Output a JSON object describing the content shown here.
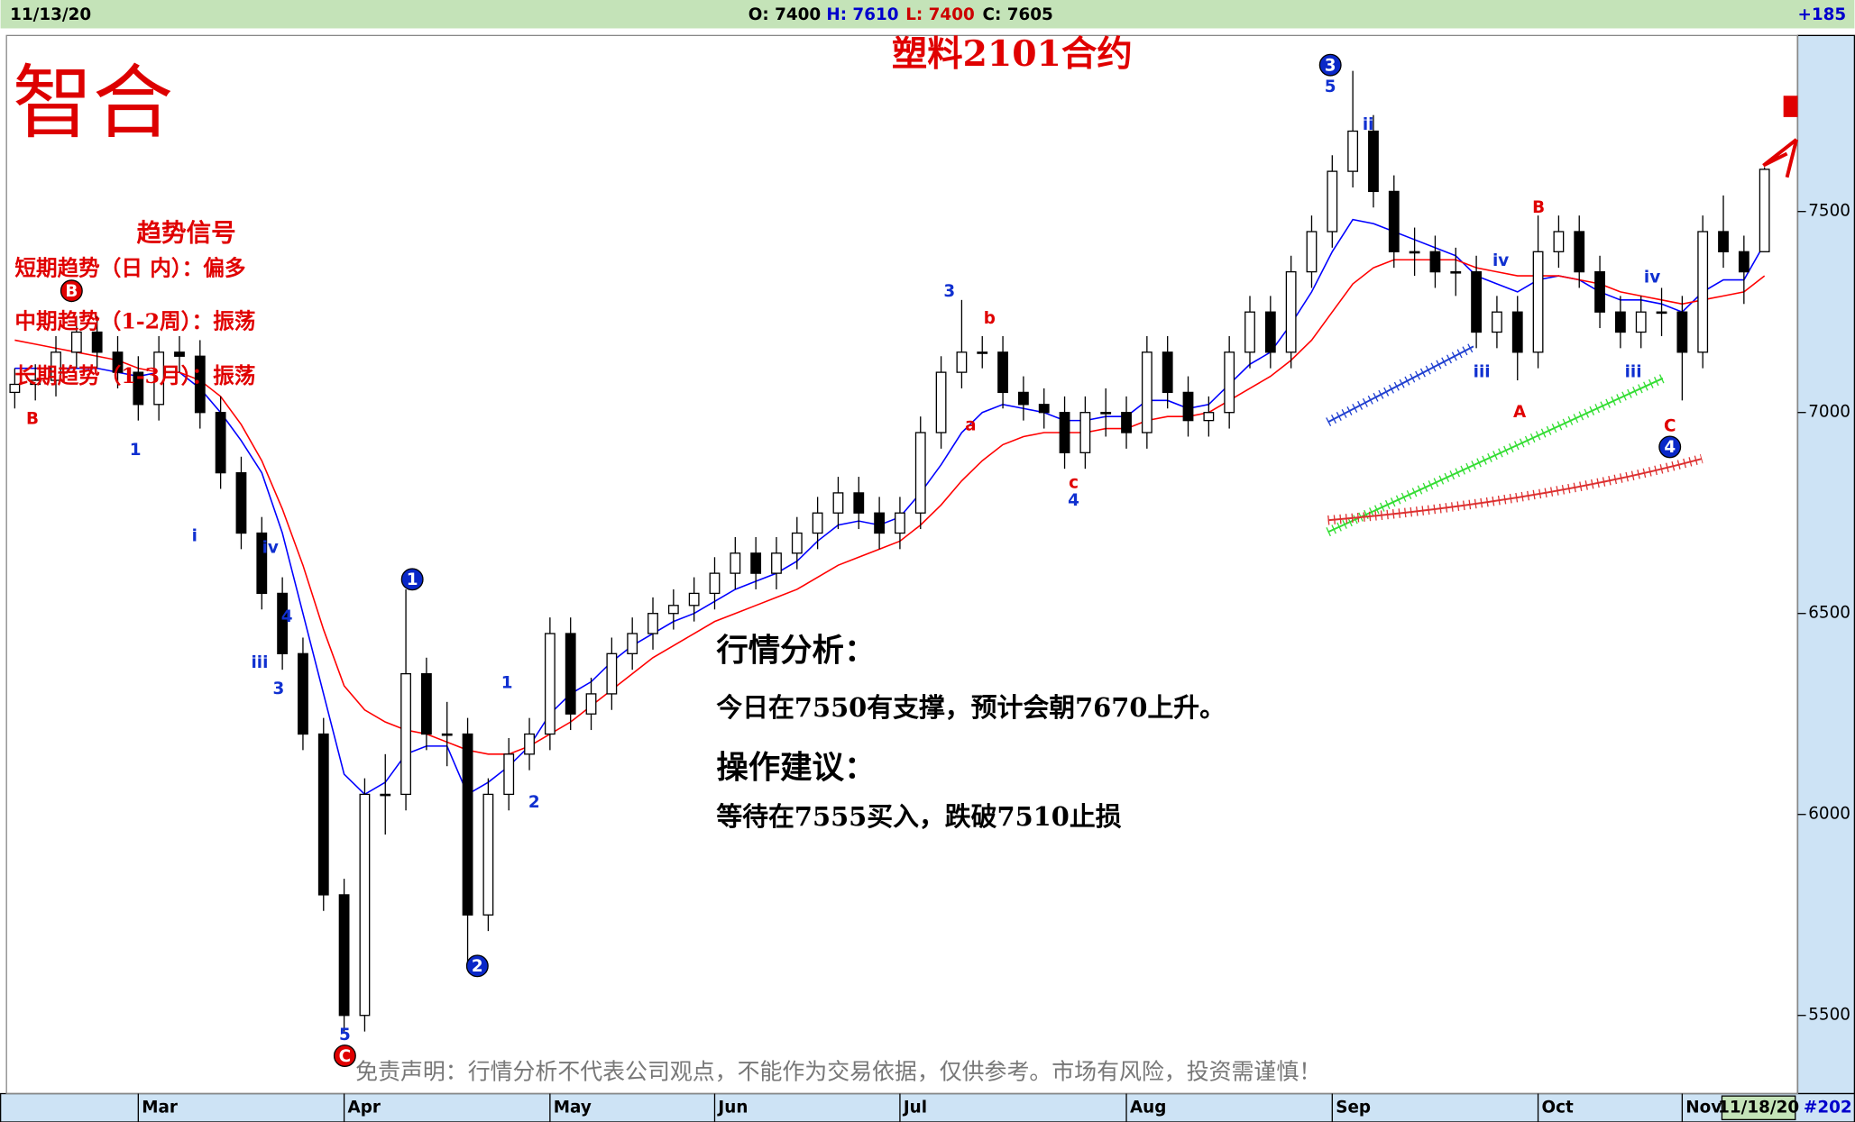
{
  "header": {
    "date": "11/13/20",
    "open": "O: 7400",
    "high": "H: 7610",
    "low": "L: 7400",
    "close": "C: 7605",
    "change": "+185"
  },
  "logo": "智合",
  "signal": {
    "title": "趋势信号",
    "lines": [
      "短期趋势（日 内）：偏多",
      "中期趋势（1-2周）：振荡",
      "长期趋势（1-3月）：振荡"
    ]
  },
  "analysis": {
    "title": "行情分析：",
    "text": "今日在7550有支撑，预计会朝7670上升。",
    "advice_title": "操作建议：",
    "advice": "等待在7555买入，跌破7510止损"
  },
  "disclaimer": "免责声明：行情分析不代表公司观点，不能作为交易依据，仅供参考。市场有风险，投资需谨慎！",
  "footer": {
    "date": "11/18/20",
    "count": "#202"
  },
  "chart_data": {
    "type": "candlestick",
    "title": "塑料2101合约",
    "categories": [
      null,
      null,
      null,
      null,
      null,
      null,
      "Mar",
      null,
      null,
      null,
      null,
      null,
      null,
      null,
      null,
      null,
      "Apr",
      null,
      null,
      null,
      null,
      null,
      null,
      null,
      null,
      null,
      "May",
      null,
      null,
      null,
      null,
      null,
      null,
      null,
      "Jun",
      null,
      null,
      null,
      null,
      null,
      null,
      null,
      null,
      "Jul",
      null,
      null,
      null,
      null,
      null,
      null,
      null,
      null,
      null,
      null,
      "Aug",
      null,
      null,
      null,
      null,
      null,
      null,
      null,
      null,
      null,
      "Sep",
      null,
      null,
      null,
      null,
      null,
      null,
      null,
      null,
      null,
      "Oct",
      null,
      null,
      null,
      null,
      null,
      null,
      "Nov",
      null,
      null,
      null,
      null
    ],
    "open": [
      7050,
      7070,
      7080,
      7150,
      7200,
      7150,
      7100,
      7020,
      7150,
      7140,
      7000,
      6850,
      6700,
      6550,
      6400,
      6200,
      5800,
      5500,
      6050,
      6050,
      6350,
      6200,
      6200,
      5750,
      6050,
      6150,
      6200,
      6450,
      6250,
      6300,
      6400,
      6450,
      6500,
      6520,
      6550,
      6600,
      6650,
      6600,
      6650,
      6700,
      6750,
      6800,
      6750,
      6700,
      6750,
      6950,
      7100,
      7150,
      7150,
      7050,
      7020,
      7000,
      6900,
      7000,
      7000,
      6950,
      7150,
      7050,
      6980,
      7000,
      7150,
      7250,
      7150,
      7350,
      7450,
      7600,
      7700,
      7550,
      7400,
      7400,
      7350,
      7350,
      7200,
      7250,
      7150,
      7400,
      7450,
      7350,
      7250,
      7200,
      7250,
      7250,
      7150,
      7450,
      7400,
      7400
    ],
    "high": [
      7110,
      7120,
      7190,
      7240,
      7240,
      7190,
      7140,
      7190,
      7190,
      7180,
      7040,
      6890,
      6740,
      6590,
      6440,
      6240,
      5840,
      6090,
      6150,
      6560,
      6390,
      6280,
      6240,
      6090,
      6190,
      6240,
      6490,
      6490,
      6340,
      6440,
      6490,
      6540,
      6560,
      6590,
      6640,
      6690,
      6690,
      6690,
      6740,
      6790,
      6840,
      6840,
      6790,
      6790,
      6990,
      7140,
      7280,
      7190,
      7190,
      7090,
      7060,
      7040,
      7040,
      7060,
      7040,
      7190,
      7190,
      7090,
      7040,
      7190,
      7290,
      7290,
      7390,
      7490,
      7640,
      7850,
      7740,
      7590,
      7460,
      7440,
      7410,
      7390,
      7290,
      7290,
      7490,
      7490,
      7490,
      7390,
      7290,
      7290,
      7310,
      7290,
      7490,
      7540,
      7440,
      7610
    ],
    "low": [
      7010,
      7030,
      7040,
      7110,
      7110,
      7060,
      6980,
      6980,
      7100,
      6960,
      6810,
      6660,
      6510,
      6360,
      6160,
      5760,
      5460,
      5460,
      5950,
      6010,
      6160,
      6120,
      5620,
      5710,
      6010,
      6110,
      6160,
      6210,
      6210,
      6260,
      6360,
      6410,
      6460,
      6480,
      6510,
      6560,
      6560,
      6560,
      6610,
      6660,
      6710,
      6710,
      6660,
      6660,
      6710,
      6910,
      7060,
      7110,
      7010,
      6980,
      6960,
      6860,
      6860,
      6940,
      6910,
      6910,
      7010,
      6940,
      6940,
      6960,
      7110,
      7110,
      7110,
      7310,
      7410,
      7560,
      7510,
      7360,
      7340,
      7310,
      7290,
      7160,
      7160,
      7080,
      7110,
      7360,
      7310,
      7210,
      7160,
      7160,
      7190,
      7030,
      7110,
      7360,
      7270,
      7400
    ],
    "close": [
      7070,
      7080,
      7150,
      7200,
      7150,
      7100,
      7020,
      7150,
      7140,
      7000,
      6850,
      6700,
      6550,
      6400,
      6200,
      5800,
      5500,
      6050,
      6050,
      6350,
      6200,
      6200,
      5750,
      6050,
      6150,
      6200,
      6450,
      6250,
      6300,
      6400,
      6450,
      6500,
      6520,
      6550,
      6600,
      6650,
      6600,
      6650,
      6700,
      6750,
      6800,
      6750,
      6700,
      6750,
      6950,
      7100,
      7150,
      7150,
      7050,
      7020,
      7000,
      6900,
      7000,
      7000,
      6950,
      7150,
      7050,
      6980,
      7000,
      7150,
      7250,
      7150,
      7350,
      7450,
      7600,
      7700,
      7550,
      7400,
      7400,
      7350,
      7350,
      7200,
      7250,
      7150,
      7400,
      7450,
      7350,
      7250,
      7200,
      7250,
      7250,
      7150,
      7450,
      7400,
      7350,
      7605
    ],
    "up_color": "#000000",
    "down_color": "#000000",
    "lines": [
      {
        "color": "#0000ff",
        "values": [
          7110,
          7110,
          7110,
          7110,
          7110,
          7100,
          7090,
          7100,
          7100,
          7060,
          7000,
          6930,
          6850,
          6700,
          6500,
          6300,
          6100,
          6050,
          6080,
          6150,
          6170,
          6170,
          6050,
          6080,
          6120,
          6170,
          6250,
          6300,
          6330,
          6380,
          6420,
          6450,
          6480,
          6500,
          6530,
          6560,
          6580,
          6600,
          6630,
          6680,
          6720,
          6730,
          6720,
          6740,
          6800,
          6870,
          6950,
          7000,
          7020,
          7010,
          7000,
          6980,
          6980,
          6990,
          6990,
          7030,
          7030,
          7010,
          7020,
          7070,
          7120,
          7150,
          7220,
          7300,
          7400,
          7480,
          7470,
          7450,
          7430,
          7410,
          7390,
          7340,
          7320,
          7300,
          7330,
          7340,
          7330,
          7300,
          7280,
          7280,
          7270,
          7250,
          7300,
          7330,
          7330,
          7420
        ]
      },
      {
        "color": "#ff0000",
        "values": [
          7180,
          7170,
          7160,
          7150,
          7140,
          7130,
          7110,
          7100,
          7100,
          7080,
          7040,
          6970,
          6880,
          6760,
          6620,
          6460,
          6320,
          6260,
          6230,
          6210,
          6200,
          6180,
          6160,
          6150,
          6150,
          6170,
          6200,
          6230,
          6270,
          6310,
          6350,
          6390,
          6420,
          6450,
          6480,
          6500,
          6520,
          6540,
          6560,
          6590,
          6620,
          6640,
          6660,
          6680,
          6720,
          6770,
          6830,
          6880,
          6920,
          6940,
          6950,
          6950,
          6950,
          6960,
          6960,
          6980,
          6990,
          6990,
          7000,
          7030,
          7060,
          7090,
          7130,
          7180,
          7250,
          7320,
          7360,
          7380,
          7380,
          7380,
          7380,
          7360,
          7350,
          7340,
          7340,
          7340,
          7330,
          7320,
          7300,
          7290,
          7280,
          7270,
          7280,
          7290,
          7300,
          7340
        ]
      }
    ],
    "ylim": [
      5326,
      7938
    ],
    "yticks": [
      5500,
      6000,
      6500,
      7000,
      7500
    ],
    "annotations": [
      "B",
      "B",
      "1",
      "1",
      "2",
      "3",
      "4",
      "C",
      "5",
      "i",
      "iii",
      "iv",
      "3",
      "b",
      "a",
      "c",
      "4",
      "5",
      "ii",
      "B",
      "A",
      "C",
      "iv",
      "iii",
      "iv",
      "iii",
      "2",
      "1",
      "4",
      "3"
    ]
  }
}
